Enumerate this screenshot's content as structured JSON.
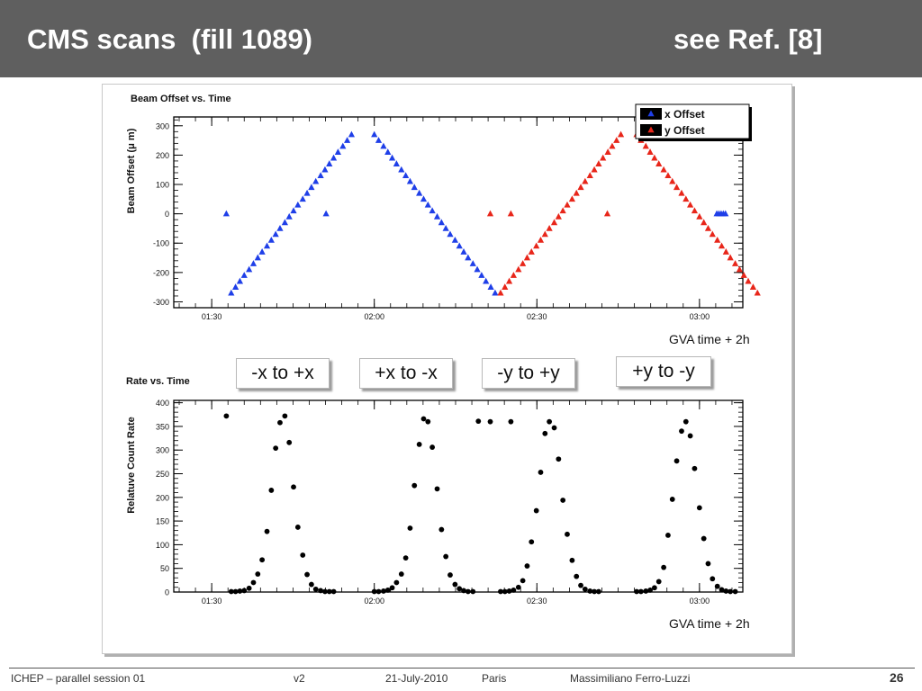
{
  "slide": {
    "title_left": "CMS scans  (fill 1089)",
    "title_right": "see Ref. [8]",
    "colors": {
      "title_bar": "#5f5f5f",
      "x_offset": "#1f3fe8",
      "y_offset": "#e8261a",
      "rate": "#000000"
    }
  },
  "annotations": {
    "gva_top": "GVA time + 2h",
    "gva_bottom": "GVA time + 2h",
    "scan_labels": [
      "-x to +x",
      "+x to -x",
      "-y to +y",
      "+y to -y"
    ]
  },
  "footer": {
    "session": "ICHEP – parallel session 01",
    "version": "v2",
    "date": "21-July-2010",
    "place": "Paris",
    "author": "Massimiliano Ferro-Luzzi",
    "page": "26"
  },
  "chart_data": [
    {
      "type": "scatter",
      "title": "Beam Offset vs. Time",
      "xlabel": "",
      "ylabel": "Beam Offset (μ m)",
      "xlim": [
        83,
        188
      ],
      "ylim": [
        -320,
        330
      ],
      "x_unit": "minutes after 00:00",
      "x_ticks": [
        90,
        120,
        150,
        180
      ],
      "x_tick_labels": [
        "01:30",
        "02:00",
        "02:30",
        "03:00"
      ],
      "y_ticks": [
        -300,
        -200,
        -100,
        0,
        100,
        200,
        300
      ],
      "y_tick_labels": [
        "-300",
        "-200",
        "-100",
        "0",
        "100",
        "200",
        "300"
      ],
      "grid": false,
      "marker": "triangle",
      "legend": {
        "position": "top-right",
        "entries": [
          "x Offset",
          "y Offset"
        ]
      },
      "series": [
        {
          "name": "x Offset",
          "color": "#1f3fe8",
          "points": [
            [
              92.7,
              0
            ],
            [
              111.1,
              0
            ],
            [
              93.6,
              -270
            ],
            [
              94.4,
              -250
            ],
            [
              95.2,
              -230
            ],
            [
              96.0,
              -210
            ],
            [
              96.9,
              -190
            ],
            [
              97.7,
              -170
            ],
            [
              98.5,
              -150
            ],
            [
              99.3,
              -130
            ],
            [
              100.2,
              -110
            ],
            [
              101.0,
              -90
            ],
            [
              101.8,
              -70
            ],
            [
              102.6,
              -50
            ],
            [
              103.5,
              -30
            ],
            [
              104.3,
              -10
            ],
            [
              105.1,
              10
            ],
            [
              105.9,
              30
            ],
            [
              106.8,
              50
            ],
            [
              107.6,
              70
            ],
            [
              108.4,
              90
            ],
            [
              109.2,
              110
            ],
            [
              110.1,
              130
            ],
            [
              110.9,
              150
            ],
            [
              111.7,
              170
            ],
            [
              112.5,
              190
            ],
            [
              113.3,
              210
            ],
            [
              114.2,
              230
            ],
            [
              115.0,
              250
            ],
            [
              115.8,
              270
            ],
            [
              120.0,
              270
            ],
            [
              120.8,
              250
            ],
            [
              121.7,
              230
            ],
            [
              122.5,
              210
            ],
            [
              123.3,
              190
            ],
            [
              124.1,
              170
            ],
            [
              125.0,
              150
            ],
            [
              125.8,
              130
            ],
            [
              126.6,
              110
            ],
            [
              127.4,
              90
            ],
            [
              128.3,
              70
            ],
            [
              129.1,
              50
            ],
            [
              129.9,
              30
            ],
            [
              130.7,
              10
            ],
            [
              131.6,
              -10
            ],
            [
              132.4,
              -30
            ],
            [
              133.2,
              -50
            ],
            [
              134.0,
              -70
            ],
            [
              134.9,
              -90
            ],
            [
              135.7,
              -110
            ],
            [
              136.5,
              -130
            ],
            [
              137.3,
              -150
            ],
            [
              138.2,
              -170
            ],
            [
              139.0,
              -190
            ],
            [
              139.8,
              -210
            ],
            [
              140.6,
              -230
            ],
            [
              141.5,
              -250
            ],
            [
              142.3,
              -270
            ],
            [
              183.2,
              0
            ],
            [
              183.6,
              0
            ],
            [
              184.0,
              0
            ],
            [
              184.4,
              0
            ],
            [
              184.8,
              0
            ]
          ]
        },
        {
          "name": "y Offset",
          "color": "#e8261a",
          "points": [
            [
              141.4,
              0
            ],
            [
              145.2,
              0
            ],
            [
              163.0,
              0
            ],
            [
              143.3,
              -270
            ],
            [
              144.1,
              -250
            ],
            [
              144.9,
              -230
            ],
            [
              145.7,
              -210
            ],
            [
              146.6,
              -190
            ],
            [
              147.4,
              -170
            ],
            [
              148.2,
              -150
            ],
            [
              149.0,
              -130
            ],
            [
              149.9,
              -110
            ],
            [
              150.7,
              -90
            ],
            [
              151.5,
              -70
            ],
            [
              152.3,
              -50
            ],
            [
              153.2,
              -30
            ],
            [
              154.0,
              -10
            ],
            [
              154.8,
              10
            ],
            [
              155.6,
              30
            ],
            [
              156.5,
              50
            ],
            [
              157.3,
              70
            ],
            [
              158.1,
              90
            ],
            [
              158.9,
              110
            ],
            [
              159.8,
              130
            ],
            [
              160.6,
              150
            ],
            [
              161.4,
              170
            ],
            [
              162.2,
              190
            ],
            [
              163.1,
              210
            ],
            [
              163.9,
              230
            ],
            [
              164.7,
              250
            ],
            [
              165.5,
              270
            ],
            [
              168.4,
              270
            ],
            [
              169.2,
              250
            ],
            [
              170.1,
              230
            ],
            [
              170.9,
              210
            ],
            [
              171.7,
              190
            ],
            [
              172.5,
              170
            ],
            [
              173.4,
              150
            ],
            [
              174.2,
              130
            ],
            [
              175.0,
              110
            ],
            [
              175.8,
              90
            ],
            [
              176.7,
              70
            ],
            [
              177.5,
              50
            ],
            [
              178.3,
              30
            ],
            [
              179.1,
              10
            ],
            [
              180.0,
              -10
            ],
            [
              180.8,
              -30
            ],
            [
              181.6,
              -50
            ],
            [
              182.4,
              -70
            ],
            [
              183.3,
              -90
            ],
            [
              184.1,
              -110
            ],
            [
              184.9,
              -130
            ],
            [
              185.7,
              -150
            ],
            [
              186.6,
              -170
            ],
            [
              187.4,
              -190
            ],
            [
              188.2,
              -210
            ],
            [
              189.0,
              -230
            ],
            [
              189.9,
              -250
            ],
            [
              190.7,
              -270
            ]
          ]
        }
      ]
    },
    {
      "type": "scatter",
      "title": "Rate vs. Time",
      "xlabel": "",
      "ylabel": "Relatuve Count Rate",
      "xlim": [
        83,
        188
      ],
      "ylim": [
        0,
        405
      ],
      "x_unit": "minutes after 00:00",
      "x_ticks": [
        90,
        120,
        150,
        180
      ],
      "x_tick_labels": [
        "01:30",
        "02:00",
        "02:30",
        "03:00"
      ],
      "y_ticks": [
        0,
        50,
        100,
        150,
        200,
        250,
        300,
        350,
        400
      ],
      "y_tick_labels": [
        "0",
        "50",
        "100",
        "150",
        "200",
        "250",
        "300",
        "350",
        "400"
      ],
      "grid": false,
      "marker": "circle",
      "series": [
        {
          "color": "#000000",
          "points": [
            [
              92.7,
              372
            ],
            [
              93.6,
              1
            ],
            [
              94.4,
              1
            ],
            [
              95.2,
              2
            ],
            [
              96.0,
              3
            ],
            [
              96.9,
              8
            ],
            [
              97.7,
              20
            ],
            [
              98.5,
              38
            ],
            [
              99.3,
              68
            ],
            [
              100.2,
              128
            ],
            [
              101.0,
              215
            ],
            [
              101.8,
              304
            ],
            [
              102.6,
              358
            ],
            [
              103.5,
              372
            ],
            [
              104.3,
              316
            ],
            [
              105.1,
              222
            ],
            [
              105.9,
              137
            ],
            [
              106.8,
              78
            ],
            [
              107.6,
              37
            ],
            [
              108.4,
              16
            ],
            [
              109.2,
              6
            ],
            [
              110.1,
              3
            ],
            [
              110.9,
              1
            ],
            [
              111.7,
              1
            ],
            [
              112.5,
              1
            ],
            [
              120.0,
              1
            ],
            [
              120.8,
              1
            ],
            [
              121.7,
              2
            ],
            [
              122.5,
              4
            ],
            [
              123.3,
              9
            ],
            [
              124.1,
              20
            ],
            [
              125.0,
              38
            ],
            [
              125.8,
              72
            ],
            [
              126.6,
              135
            ],
            [
              127.4,
              225
            ],
            [
              128.3,
              312
            ],
            [
              129.1,
              366
            ],
            [
              129.9,
              360
            ],
            [
              130.7,
              306
            ],
            [
              131.6,
              218
            ],
            [
              132.4,
              132
            ],
            [
              133.2,
              75
            ],
            [
              134.0,
              36
            ],
            [
              134.9,
              16
            ],
            [
              135.7,
              7
            ],
            [
              136.5,
              3
            ],
            [
              137.3,
              1
            ],
            [
              138.2,
              1
            ],
            [
              139.2,
              361
            ],
            [
              141.4,
              360
            ],
            [
              145.2,
              360
            ],
            [
              143.3,
              1
            ],
            [
              144.1,
              1
            ],
            [
              144.9,
              2
            ],
            [
              145.7,
              4
            ],
            [
              146.6,
              10
            ],
            [
              147.4,
              24
            ],
            [
              148.2,
              55
            ],
            [
              149.0,
              106
            ],
            [
              149.9,
              172
            ],
            [
              150.7,
              253
            ],
            [
              151.5,
              335
            ],
            [
              152.3,
              360
            ],
            [
              153.2,
              347
            ],
            [
              154.0,
              281
            ],
            [
              154.8,
              194
            ],
            [
              155.6,
              122
            ],
            [
              156.5,
              67
            ],
            [
              157.3,
              33
            ],
            [
              158.1,
              14
            ],
            [
              158.9,
              6
            ],
            [
              159.8,
              2
            ],
            [
              160.6,
              1
            ],
            [
              161.4,
              1
            ],
            [
              168.4,
              1
            ],
            [
              169.2,
              1
            ],
            [
              170.1,
              2
            ],
            [
              170.9,
              4
            ],
            [
              171.7,
              9
            ],
            [
              172.5,
              22
            ],
            [
              173.4,
              52
            ],
            [
              174.2,
              120
            ],
            [
              175.0,
              196
            ],
            [
              175.8,
              277
            ],
            [
              176.7,
              340
            ],
            [
              177.5,
              360
            ],
            [
              178.3,
              330
            ],
            [
              179.1,
              261
            ],
            [
              180.0,
              178
            ],
            [
              180.8,
              113
            ],
            [
              181.6,
              60
            ],
            [
              182.4,
              28
            ],
            [
              183.3,
              12
            ],
            [
              184.1,
              5
            ],
            [
              184.9,
              2
            ],
            [
              185.7,
              1
            ],
            [
              186.6,
              1
            ]
          ]
        }
      ]
    }
  ]
}
